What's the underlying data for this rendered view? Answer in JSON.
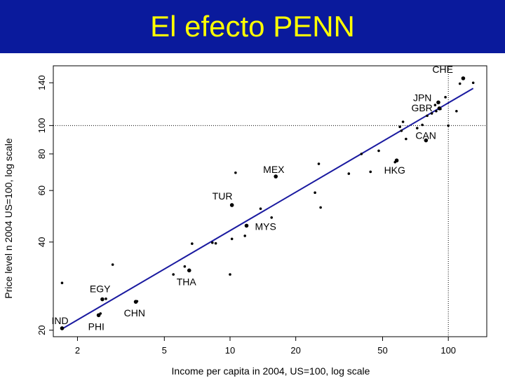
{
  "slide": {
    "title": "El efecto PENN",
    "title_bar_color": "#0a1a9c",
    "title_color": "#ffff00"
  },
  "chart_data": {
    "type": "scatter",
    "title": "",
    "xlabel": "Income per capita in 2004, US=100, log scale",
    "ylabel": "Price level n 2004 US=100, log scale",
    "x_scale": "log",
    "y_scale": "log",
    "xlim": [
      1.55,
      150
    ],
    "ylim": [
      19,
      160
    ],
    "x_ticks": [
      2,
      5,
      10,
      20,
      50,
      100
    ],
    "x_tick_labels": [
      "2",
      "5",
      "10",
      "20",
      "50",
      "100"
    ],
    "y_ticks": [
      20,
      40,
      60,
      80,
      100,
      140
    ],
    "y_tick_labels": [
      "20",
      "40",
      "60",
      "80",
      "100",
      "140"
    ],
    "reference_lines": {
      "x": 100,
      "y": 100,
      "style": "dotted"
    },
    "fit_line": {
      "color": "#1a1aa0",
      "points": [
        [
          1.7,
          20.2
        ],
        [
          130,
          134
        ]
      ]
    },
    "labeled_points": [
      {
        "label": "IND",
        "x": 1.7,
        "y": 20.3
      },
      {
        "label": "PHI",
        "x": 2.5,
        "y": 22.5
      },
      {
        "label": "EGY",
        "x": 2.6,
        "y": 25.5
      },
      {
        "label": "CHN",
        "x": 3.7,
        "y": 25.0
      },
      {
        "label": "THA",
        "x": 6.5,
        "y": 32.0
      },
      {
        "label": "MYS",
        "x": 11.9,
        "y": 45.5
      },
      {
        "label": "TUR",
        "x": 10.2,
        "y": 53.5
      },
      {
        "label": "MEX",
        "x": 16.2,
        "y": 67.0
      },
      {
        "label": "HKG",
        "x": 58.0,
        "y": 76.0
      },
      {
        "label": "CAN",
        "x": 79.0,
        "y": 89.0
      },
      {
        "label": "GBR",
        "x": 91.0,
        "y": 114.5
      },
      {
        "label": "JPN",
        "x": 90.0,
        "y": 120.0
      },
      {
        "label": "CHE",
        "x": 117.0,
        "y": 145.0
      }
    ],
    "points": [
      {
        "x": 1.7,
        "y": 29.0
      },
      {
        "x": 2.55,
        "y": 22.8
      },
      {
        "x": 2.7,
        "y": 25.6
      },
      {
        "x": 2.9,
        "y": 33.5
      },
      {
        "x": 3.75,
        "y": 25.1
      },
      {
        "x": 5.5,
        "y": 31.0
      },
      {
        "x": 6.2,
        "y": 33.0
      },
      {
        "x": 6.7,
        "y": 39.5
      },
      {
        "x": 8.3,
        "y": 39.8
      },
      {
        "x": 8.6,
        "y": 39.6
      },
      {
        "x": 10.0,
        "y": 31.0
      },
      {
        "x": 10.2,
        "y": 41.0
      },
      {
        "x": 10.6,
        "y": 69.0
      },
      {
        "x": 11.7,
        "y": 42.0
      },
      {
        "x": 13.8,
        "y": 52.0
      },
      {
        "x": 15.5,
        "y": 48.5
      },
      {
        "x": 24.5,
        "y": 59.0
      },
      {
        "x": 25.5,
        "y": 74.0
      },
      {
        "x": 26.0,
        "y": 52.5
      },
      {
        "x": 35.0,
        "y": 68.5
      },
      {
        "x": 40.0,
        "y": 80.0
      },
      {
        "x": 44.0,
        "y": 69.5
      },
      {
        "x": 48.0,
        "y": 82.0
      },
      {
        "x": 57.0,
        "y": 75.0
      },
      {
        "x": 60.0,
        "y": 99.0
      },
      {
        "x": 61.0,
        "y": 96.0
      },
      {
        "x": 62.0,
        "y": 103.0
      },
      {
        "x": 64.0,
        "y": 90.0
      },
      {
        "x": 72.0,
        "y": 98.0
      },
      {
        "x": 76.0,
        "y": 100.5
      },
      {
        "x": 80.0,
        "y": 108.0
      },
      {
        "x": 84.0,
        "y": 110.0
      },
      {
        "x": 87.0,
        "y": 117.5
      },
      {
        "x": 88.0,
        "y": 112.0
      },
      {
        "x": 92.0,
        "y": 114.0
      },
      {
        "x": 97.0,
        "y": 125.0
      },
      {
        "x": 100.0,
        "y": 100.0
      },
      {
        "x": 109.0,
        "y": 112.0
      },
      {
        "x": 113.0,
        "y": 139.0
      },
      {
        "x": 130.0,
        "y": 140.0
      }
    ]
  }
}
